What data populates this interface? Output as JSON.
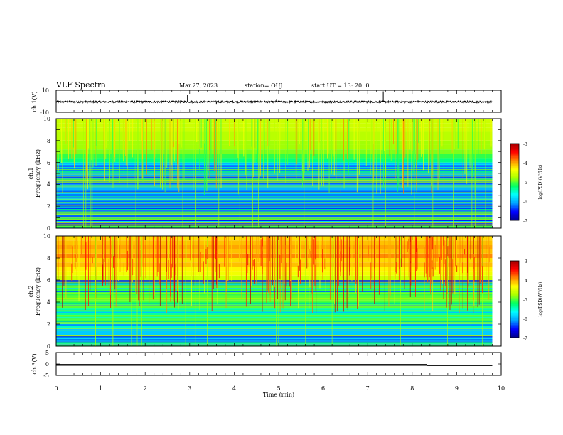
{
  "header": {
    "title": "VLF Spectra",
    "date": "Mar.27, 2023",
    "station": "station= OUJ",
    "start": "start  UT  =   13: 20: 0"
  },
  "chart_data": [
    {
      "type": "line",
      "name": "ch1-waveform",
      "ylabel": "ch.1(V)",
      "ylim": [
        -10,
        10
      ],
      "yticks": [
        "10",
        "-10"
      ],
      "xlim": [
        0,
        10
      ],
      "baseline": -0.5,
      "data_end_x": 9.8,
      "spikes": [
        {
          "x": 2.95,
          "y": 6
        },
        {
          "x": 3.6,
          "y": -3
        },
        {
          "x": 4.95,
          "y": 2
        },
        {
          "x": 7.0,
          "y": -1.5
        },
        {
          "x": 7.35,
          "y": 9
        }
      ]
    },
    {
      "type": "heatmap",
      "name": "ch1-spectrogram",
      "ylabel": "Frequency (kHz)",
      "channel_label": "ch.1",
      "ylim": [
        0,
        10
      ],
      "yticks": [
        "0",
        "2",
        "4",
        "6",
        "8",
        "10"
      ],
      "xlim": [
        0,
        10
      ],
      "data_end_x": 9.8,
      "band_edges_khz": [
        0.0,
        0.4,
        1.0,
        1.6,
        2.2,
        2.8,
        3.4,
        4.0,
        4.6,
        5.2,
        5.6,
        6.0,
        6.4,
        6.8,
        7.2,
        7.6,
        8.0,
        8.4,
        8.8,
        9.2,
        9.6,
        10.0
      ],
      "band_log_psd": [
        -6.8,
        -6.5,
        -6.2,
        -6.4,
        -6.1,
        -6.2,
        -6.0,
        -6.3,
        -6.0,
        -6.2,
        -5.8,
        -5.3,
        -5.1,
        -4.9,
        -4.8,
        -4.8,
        -4.7,
        -4.7,
        -4.6,
        -4.6,
        -4.6
      ],
      "colorbar": {
        "label": "log(PSD)(V²/Hz)",
        "range": [
          -7,
          -3
        ],
        "ticks": [
          "-3",
          "-4",
          "-5",
          "-6",
          "-7"
        ]
      }
    },
    {
      "type": "heatmap",
      "name": "ch2-spectrogram",
      "ylabel": "Frequency (kHz)",
      "channel_label": "ch.2",
      "ylim": [
        0,
        10
      ],
      "yticks": [
        "0",
        "2",
        "4",
        "6",
        "8",
        "10"
      ],
      "xlim": [
        0,
        10
      ],
      "data_end_x": 9.8,
      "band_edges_khz": [
        0.0,
        0.4,
        1.0,
        1.6,
        2.2,
        2.8,
        3.4,
        4.0,
        4.6,
        5.2,
        5.6,
        6.0,
        6.4,
        6.8,
        7.2,
        7.6,
        8.0,
        8.4,
        8.8,
        9.2,
        9.6,
        10.0
      ],
      "band_log_psd": [
        -6.6,
        -6.2,
        -5.9,
        -5.6,
        -5.3,
        -5.4,
        -5.2,
        -5.0,
        -5.1,
        -5.0,
        -4.8,
        -4.6,
        -4.4,
        -4.3,
        -4.1,
        -4.2,
        -3.9,
        -4.1,
        -4.0,
        -4.1,
        -4.2
      ],
      "colorbar": {
        "label": "log(PSD)(V²/Hz)",
        "range": [
          -7,
          -3
        ],
        "ticks": [
          "-3",
          "-4",
          "-5",
          "-6",
          "-7"
        ]
      }
    },
    {
      "type": "line",
      "name": "ch3-waveform",
      "ylabel": "ch.3(V)",
      "ylim": [
        -5,
        5
      ],
      "yticks": [
        "5",
        "0",
        "-5"
      ],
      "xlim": [
        0,
        10
      ],
      "xlabel": "Time  (min)",
      "xticks": [
        "0",
        "1",
        "2",
        "3",
        "4",
        "5",
        "6",
        "7",
        "8",
        "9",
        "10"
      ],
      "level_high": -0.4,
      "level_low": -0.7,
      "step_x": 8.33,
      "data_end_x": 9.8
    }
  ],
  "colors": {
    "colormap": [
      "#00008b",
      "#0000ff",
      "#00a0ff",
      "#00ffff",
      "#00ff66",
      "#aaff00",
      "#ffff00",
      "#ff8800",
      "#ff0000",
      "#a00000"
    ]
  }
}
